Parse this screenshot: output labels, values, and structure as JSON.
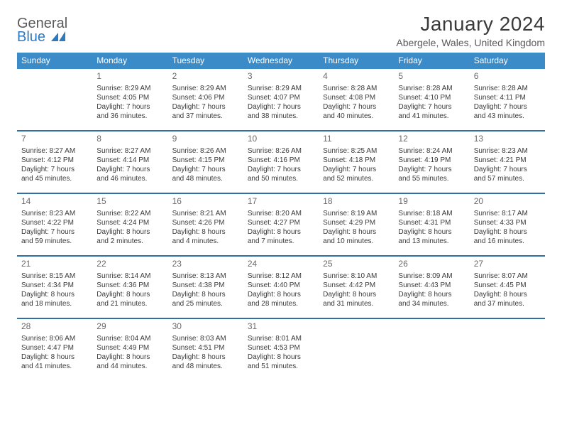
{
  "logo": {
    "text1": "General",
    "text2": "Blue"
  },
  "title": "January 2024",
  "location": "Abergele, Wales, United Kingdom",
  "header_bg": "#3b8bc9",
  "divider_color": "#2f6fa5",
  "dow": [
    "Sunday",
    "Monday",
    "Tuesday",
    "Wednesday",
    "Thursday",
    "Friday",
    "Saturday"
  ],
  "weeks": [
    [
      null,
      {
        "n": "1",
        "sr": "Sunrise: 8:29 AM",
        "ss": "Sunset: 4:05 PM",
        "dl1": "Daylight: 7 hours",
        "dl2": "and 36 minutes."
      },
      {
        "n": "2",
        "sr": "Sunrise: 8:29 AM",
        "ss": "Sunset: 4:06 PM",
        "dl1": "Daylight: 7 hours",
        "dl2": "and 37 minutes."
      },
      {
        "n": "3",
        "sr": "Sunrise: 8:29 AM",
        "ss": "Sunset: 4:07 PM",
        "dl1": "Daylight: 7 hours",
        "dl2": "and 38 minutes."
      },
      {
        "n": "4",
        "sr": "Sunrise: 8:28 AM",
        "ss": "Sunset: 4:08 PM",
        "dl1": "Daylight: 7 hours",
        "dl2": "and 40 minutes."
      },
      {
        "n": "5",
        "sr": "Sunrise: 8:28 AM",
        "ss": "Sunset: 4:10 PM",
        "dl1": "Daylight: 7 hours",
        "dl2": "and 41 minutes."
      },
      {
        "n": "6",
        "sr": "Sunrise: 8:28 AM",
        "ss": "Sunset: 4:11 PM",
        "dl1": "Daylight: 7 hours",
        "dl2": "and 43 minutes."
      }
    ],
    [
      {
        "n": "7",
        "sr": "Sunrise: 8:27 AM",
        "ss": "Sunset: 4:12 PM",
        "dl1": "Daylight: 7 hours",
        "dl2": "and 45 minutes."
      },
      {
        "n": "8",
        "sr": "Sunrise: 8:27 AM",
        "ss": "Sunset: 4:14 PM",
        "dl1": "Daylight: 7 hours",
        "dl2": "and 46 minutes."
      },
      {
        "n": "9",
        "sr": "Sunrise: 8:26 AM",
        "ss": "Sunset: 4:15 PM",
        "dl1": "Daylight: 7 hours",
        "dl2": "and 48 minutes."
      },
      {
        "n": "10",
        "sr": "Sunrise: 8:26 AM",
        "ss": "Sunset: 4:16 PM",
        "dl1": "Daylight: 7 hours",
        "dl2": "and 50 minutes."
      },
      {
        "n": "11",
        "sr": "Sunrise: 8:25 AM",
        "ss": "Sunset: 4:18 PM",
        "dl1": "Daylight: 7 hours",
        "dl2": "and 52 minutes."
      },
      {
        "n": "12",
        "sr": "Sunrise: 8:24 AM",
        "ss": "Sunset: 4:19 PM",
        "dl1": "Daylight: 7 hours",
        "dl2": "and 55 minutes."
      },
      {
        "n": "13",
        "sr": "Sunrise: 8:23 AM",
        "ss": "Sunset: 4:21 PM",
        "dl1": "Daylight: 7 hours",
        "dl2": "and 57 minutes."
      }
    ],
    [
      {
        "n": "14",
        "sr": "Sunrise: 8:23 AM",
        "ss": "Sunset: 4:22 PM",
        "dl1": "Daylight: 7 hours",
        "dl2": "and 59 minutes."
      },
      {
        "n": "15",
        "sr": "Sunrise: 8:22 AM",
        "ss": "Sunset: 4:24 PM",
        "dl1": "Daylight: 8 hours",
        "dl2": "and 2 minutes."
      },
      {
        "n": "16",
        "sr": "Sunrise: 8:21 AM",
        "ss": "Sunset: 4:26 PM",
        "dl1": "Daylight: 8 hours",
        "dl2": "and 4 minutes."
      },
      {
        "n": "17",
        "sr": "Sunrise: 8:20 AM",
        "ss": "Sunset: 4:27 PM",
        "dl1": "Daylight: 8 hours",
        "dl2": "and 7 minutes."
      },
      {
        "n": "18",
        "sr": "Sunrise: 8:19 AM",
        "ss": "Sunset: 4:29 PM",
        "dl1": "Daylight: 8 hours",
        "dl2": "and 10 minutes."
      },
      {
        "n": "19",
        "sr": "Sunrise: 8:18 AM",
        "ss": "Sunset: 4:31 PM",
        "dl1": "Daylight: 8 hours",
        "dl2": "and 13 minutes."
      },
      {
        "n": "20",
        "sr": "Sunrise: 8:17 AM",
        "ss": "Sunset: 4:33 PM",
        "dl1": "Daylight: 8 hours",
        "dl2": "and 16 minutes."
      }
    ],
    [
      {
        "n": "21",
        "sr": "Sunrise: 8:15 AM",
        "ss": "Sunset: 4:34 PM",
        "dl1": "Daylight: 8 hours",
        "dl2": "and 18 minutes."
      },
      {
        "n": "22",
        "sr": "Sunrise: 8:14 AM",
        "ss": "Sunset: 4:36 PM",
        "dl1": "Daylight: 8 hours",
        "dl2": "and 21 minutes."
      },
      {
        "n": "23",
        "sr": "Sunrise: 8:13 AM",
        "ss": "Sunset: 4:38 PM",
        "dl1": "Daylight: 8 hours",
        "dl2": "and 25 minutes."
      },
      {
        "n": "24",
        "sr": "Sunrise: 8:12 AM",
        "ss": "Sunset: 4:40 PM",
        "dl1": "Daylight: 8 hours",
        "dl2": "and 28 minutes."
      },
      {
        "n": "25",
        "sr": "Sunrise: 8:10 AM",
        "ss": "Sunset: 4:42 PM",
        "dl1": "Daylight: 8 hours",
        "dl2": "and 31 minutes."
      },
      {
        "n": "26",
        "sr": "Sunrise: 8:09 AM",
        "ss": "Sunset: 4:43 PM",
        "dl1": "Daylight: 8 hours",
        "dl2": "and 34 minutes."
      },
      {
        "n": "27",
        "sr": "Sunrise: 8:07 AM",
        "ss": "Sunset: 4:45 PM",
        "dl1": "Daylight: 8 hours",
        "dl2": "and 37 minutes."
      }
    ],
    [
      {
        "n": "28",
        "sr": "Sunrise: 8:06 AM",
        "ss": "Sunset: 4:47 PM",
        "dl1": "Daylight: 8 hours",
        "dl2": "and 41 minutes."
      },
      {
        "n": "29",
        "sr": "Sunrise: 8:04 AM",
        "ss": "Sunset: 4:49 PM",
        "dl1": "Daylight: 8 hours",
        "dl2": "and 44 minutes."
      },
      {
        "n": "30",
        "sr": "Sunrise: 8:03 AM",
        "ss": "Sunset: 4:51 PM",
        "dl1": "Daylight: 8 hours",
        "dl2": "and 48 minutes."
      },
      {
        "n": "31",
        "sr": "Sunrise: 8:01 AM",
        "ss": "Sunset: 4:53 PM",
        "dl1": "Daylight: 8 hours",
        "dl2": "and 51 minutes."
      },
      null,
      null,
      null
    ]
  ]
}
